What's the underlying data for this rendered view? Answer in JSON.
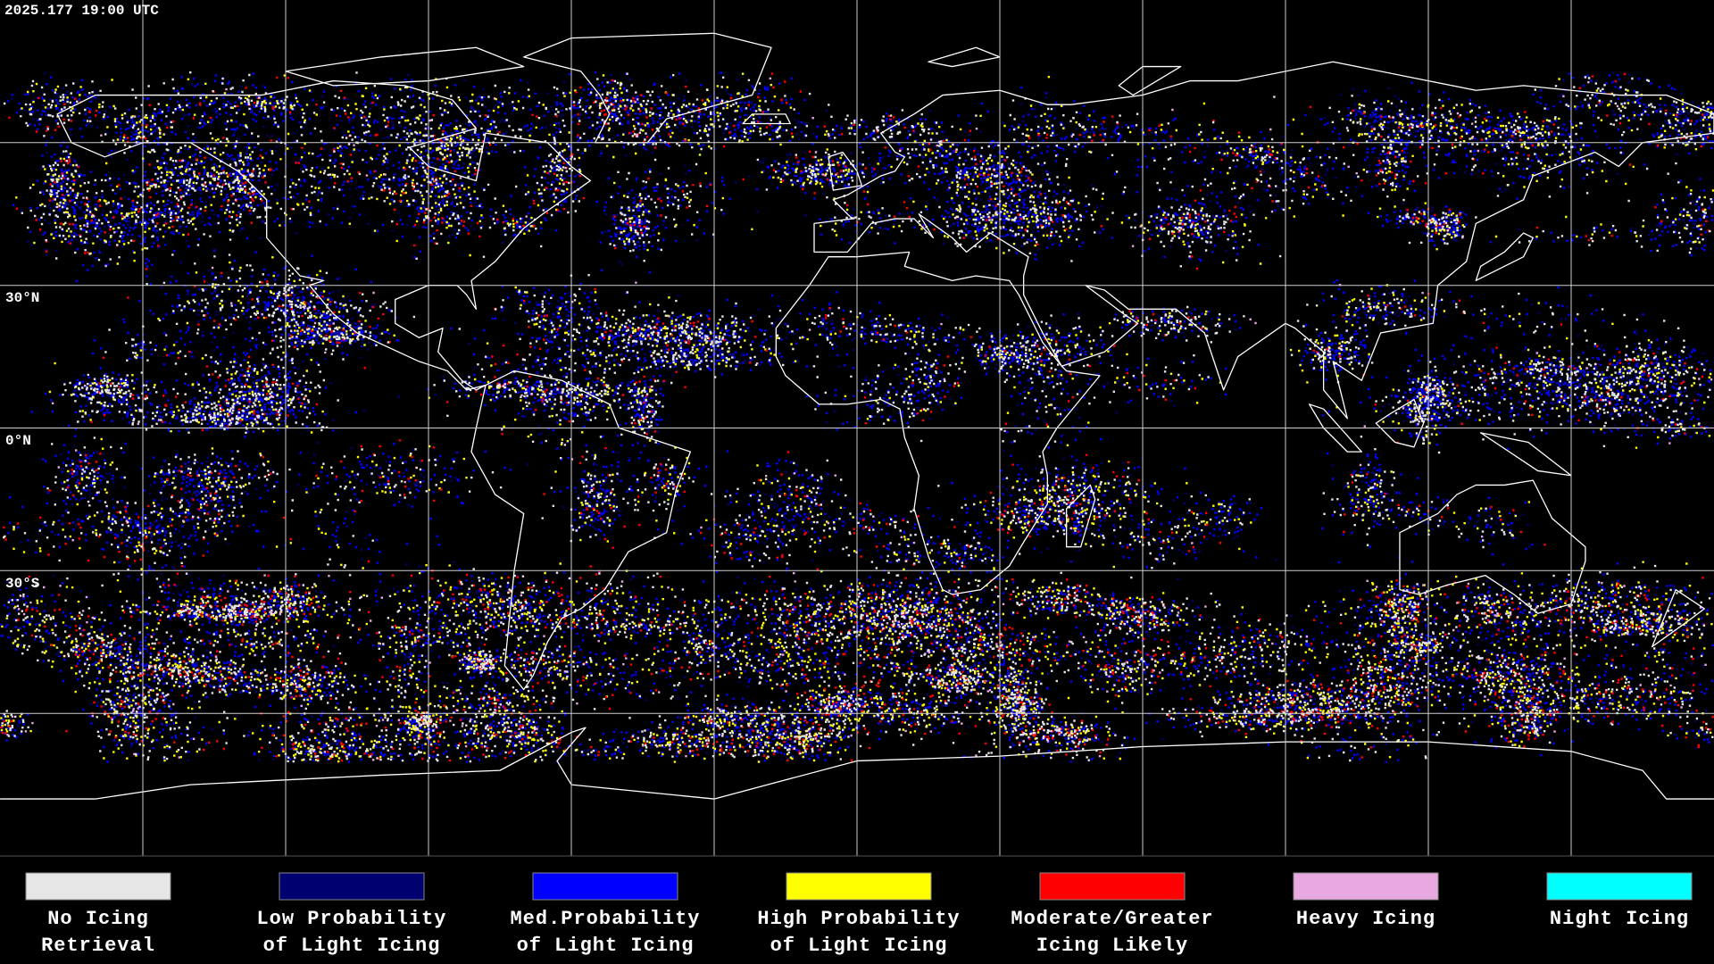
{
  "header": {
    "timestamp": "2025.177 19:00 UTC"
  },
  "map": {
    "latitude_labels": [
      "30°N",
      "0°N",
      "30°S"
    ]
  },
  "legend": {
    "items": [
      {
        "label_lines": [
          "No Icing",
          "Retrieval"
        ],
        "color": "#e6e6e6"
      },
      {
        "label_lines": [
          "Low Probability",
          "of Light Icing"
        ],
        "color": "#000070"
      },
      {
        "label_lines": [
          "Med.Probability",
          "of Light Icing"
        ],
        "color": "#0000ff"
      },
      {
        "label_lines": [
          "High Probability",
          "of Light Icing"
        ],
        "color": "#ffff00"
      },
      {
        "label_lines": [
          "Moderate/Greater",
          "Icing Likely"
        ],
        "color": "#ff0000"
      },
      {
        "label_lines": [
          "Heavy Icing"
        ],
        "color": "#e8a8e0"
      },
      {
        "label_lines": [
          "Night Icing"
        ],
        "color": "#00ffff"
      }
    ]
  }
}
